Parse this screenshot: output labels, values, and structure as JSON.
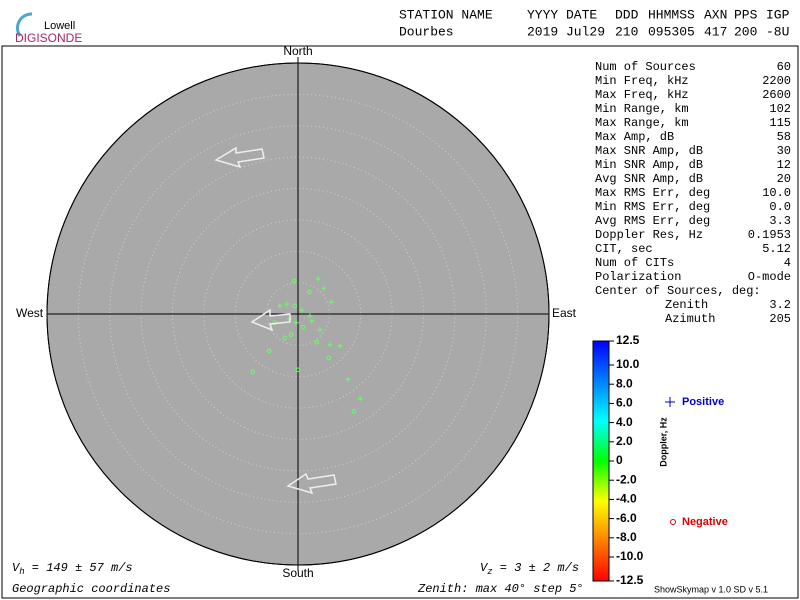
{
  "logo": {
    "brand": "Lowell",
    "product": "DIGISONDE"
  },
  "header": {
    "labels": [
      "STATION NAME",
      "YYYY DATE",
      "DDD",
      "HHMMSS",
      "AXN",
      "PPS",
      "IGP"
    ],
    "values": [
      "Dourbes",
      "2019 Jul29",
      "210",
      "095305",
      "417",
      "200",
      "-8U"
    ]
  },
  "chart_data": {
    "type": "skymap",
    "directions": {
      "north": "North",
      "south": "South",
      "east": "East",
      "west": "West"
    },
    "xlim": [
      -40,
      40
    ],
    "ylim": [
      -40,
      40
    ],
    "rticks": [
      5,
      10,
      15,
      20,
      25,
      30,
      35,
      40
    ],
    "series": [
      {
        "name": "Positive",
        "marker": "+",
        "color": "#66ff66",
        "legend_color": "#0000cc",
        "x": [
          3.2,
          4.1,
          5.3,
          -1.8,
          5.1,
          8.0,
          9.9,
          0.6,
          2.2,
          -0.3,
          -2.9,
          1.9,
          3.5,
          6.7,
          -1.4
        ],
        "y": [
          5.6,
          4.1,
          1.9,
          1.6,
          -4.9,
          -10.4,
          -13.5,
          0.6,
          -1.1,
          -1.4,
          1.3,
          -0.3,
          -2.5,
          -5.1,
          -0.8
        ]
      },
      {
        "name": "Negative",
        "marker": "o",
        "color": "#66ff66",
        "legend_color": "#dd0000",
        "x": [
          -0.6,
          1.8,
          -0.5,
          0.8,
          -2.1,
          3.0,
          -4.6,
          4.9,
          -7.2,
          0,
          8.9,
          -3.7,
          -1.1
        ],
        "y": [
          5.3,
          3.5,
          1.3,
          -2.1,
          -3.8,
          -4.5,
          -5.9,
          -7.0,
          -9.2,
          -8.9,
          -15.5,
          -1.4,
          -3.3
        ]
      }
    ],
    "colorbar": {
      "label": "Doppler, Hz",
      "lim": [
        -12.5,
        12.5
      ],
      "colors": [
        "#ff0000",
        "#ff8000",
        "#ffff00",
        "#00ff00",
        "#00ffff",
        "#0080ff",
        "#0000ff"
      ],
      "ticks": [
        12.5,
        {
          "value": 10,
          "label": "10.0"
        },
        {
          "value": 8,
          "label": "8.0"
        },
        {
          "value": 6,
          "label": "6.0"
        },
        {
          "value": 4,
          "label": "4.0"
        },
        {
          "value": 2,
          "label": "2.0"
        },
        0,
        {
          "value": -2,
          "label": "-2.0"
        },
        {
          "value": -4,
          "label": "-4.0"
        },
        {
          "value": -6,
          "label": "-6.0"
        },
        {
          "value": -8,
          "label": "-8.0"
        },
        {
          "value": -10,
          "label": "-10.0"
        },
        -12.5
      ]
    }
  },
  "stats": {
    "rows": [
      {
        "label": "Num of Sources",
        "value": 60
      },
      {
        "label": "Min Freq, kHz",
        "value": 2200
      },
      {
        "label": "Max Freq, kHz",
        "value": 2600
      },
      {
        "label": "Min Range, km",
        "value": 102
      },
      {
        "label": "Max Range, km",
        "value": 115
      },
      {
        "label": "Max Amp, dB",
        "value": 58
      },
      {
        "label": "Max SNR Amp, dB",
        "value": 30
      },
      {
        "label": "Min SNR Amp, dB",
        "value": 12
      },
      {
        "label": "Avg SNR Amp, dB",
        "value": 20
      },
      {
        "label": "Max RMS Err, deg",
        "value": "10.0"
      },
      {
        "label": "Min RMS Err, deg",
        "value": "0.0"
      },
      {
        "label": "Avg RMS Err, deg",
        "value": 3.3
      },
      {
        "label": "Doppler Res, Hz",
        "value": 0.1953
      },
      {
        "label": "CIT, sec",
        "value": 5.12
      },
      {
        "label": "Num of CITs",
        "value": 4
      },
      {
        "label": "Polarization",
        "value": "O-mode"
      }
    ],
    "center": {
      "label": "Center of Sources, deg:",
      "rows": [
        {
          "label": "Zenith",
          "value": 3.2
        },
        {
          "label": "Azimuth",
          "value": 205
        }
      ]
    }
  },
  "footer": {
    "vh": {
      "symbol": "V",
      "subscript": "h",
      "text": " = 149 ± 57 m/s"
    },
    "vz": {
      "symbol": "V",
      "subscript": "z",
      "text": " = 3 ± 2 m/s"
    },
    "coords": "Geographic coordinates",
    "zenith": "Zenith: max 40°  step 5°",
    "version": "ShowSkymap v 1.0  SD v 5.1"
  }
}
